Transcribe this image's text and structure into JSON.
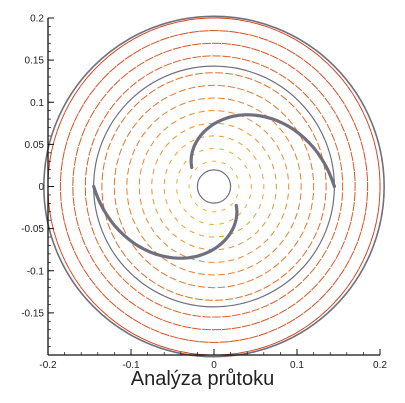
{
  "caption": "Analýza průtoku",
  "chart_data": {
    "type": "vector-field",
    "title": "",
    "xlabel": "",
    "ylabel": "",
    "xlim": [
      -0.2,
      0.2
    ],
    "ylim": [
      -0.2,
      0.2
    ],
    "x_ticks": [
      {
        "value": -0.2,
        "label": "-0.2"
      },
      {
        "value": -0.1,
        "label": "-0.1"
      },
      {
        "value": 0,
        "label": "0"
      },
      {
        "value": 0.1,
        "label": "0.1"
      },
      {
        "value": 0.2,
        "label": "0.2"
      }
    ],
    "y_ticks": [
      {
        "value": 0.2,
        "label": "0.2"
      },
      {
        "value": 0.15,
        "label": "0.15"
      },
      {
        "value": 0.1,
        "label": "0.1"
      },
      {
        "value": 0.05,
        "label": "0.05"
      },
      {
        "value": 0,
        "label": "0"
      },
      {
        "value": -0.05,
        "label": "-0.05"
      },
      {
        "value": -0.1,
        "label": "-0.1"
      },
      {
        "value": -0.15,
        "label": "-0.15"
      }
    ],
    "grid": false,
    "geometry": {
      "outer_circle_radius": 0.205,
      "middle_circle_radius": 0.145,
      "inner_hub_radius": 0.02,
      "blades": [
        {
          "start_angle_deg": 0,
          "end_angle_deg": 140,
          "r_start": 0.145,
          "r_end": 0.035
        },
        {
          "start_angle_deg": 180,
          "end_angle_deg": 320,
          "r_start": 0.145,
          "r_end": 0.035
        }
      ]
    },
    "field": {
      "rotation": "clockwise",
      "ring_radii": [
        0.03,
        0.045,
        0.06,
        0.075,
        0.09,
        0.105,
        0.12,
        0.135,
        0.155,
        0.17,
        0.185,
        0.2
      ],
      "inner_color": "#f1b03a",
      "outer_color": "#d8431e"
    },
    "colors": {
      "walls": "#6f6f7d",
      "axes": "#111111"
    }
  }
}
